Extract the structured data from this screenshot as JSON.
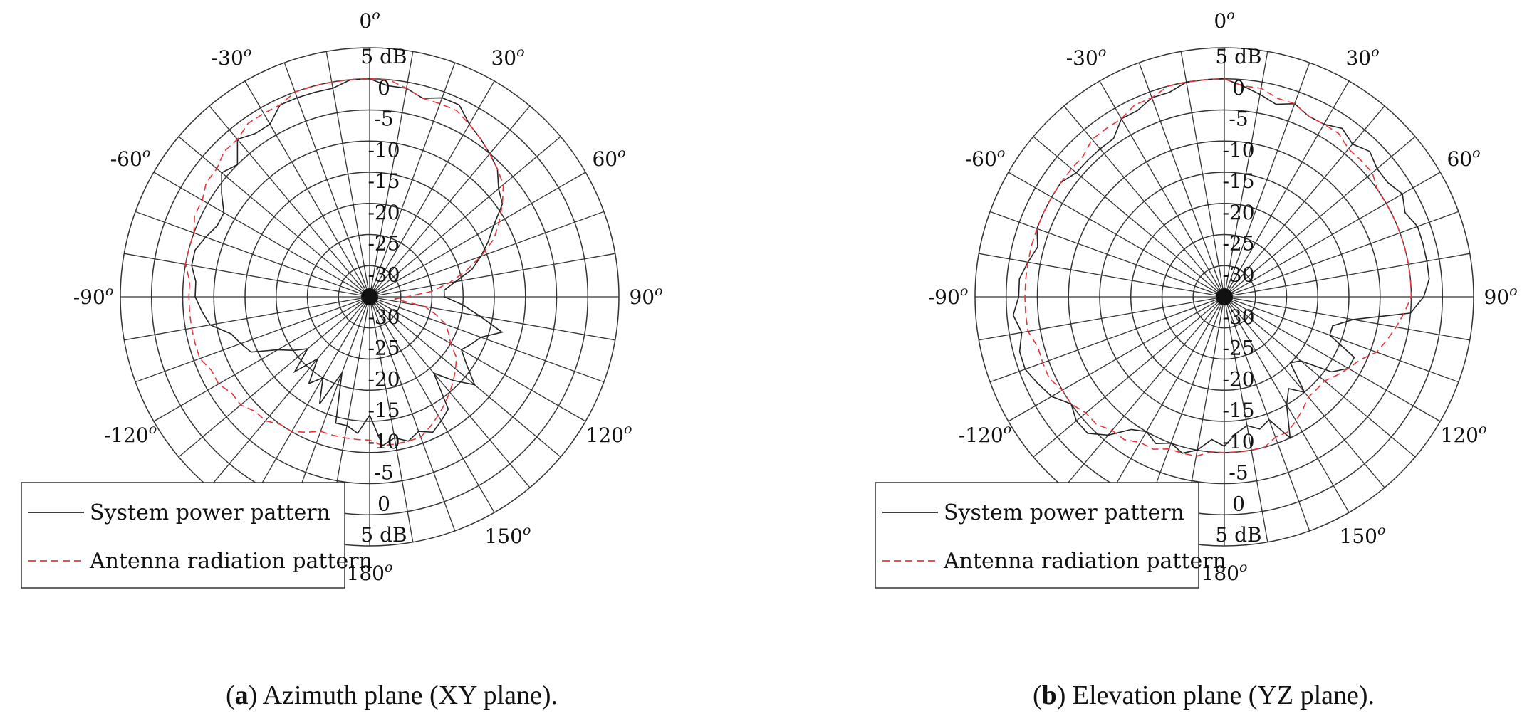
{
  "chart_data": [
    {
      "type": "polar-line",
      "angular_ticks": [
        "0",
        "30",
        "60",
        "90",
        "120",
        "150",
        "180",
        "-150",
        "-120",
        "-90",
        "-60",
        "-30"
      ],
      "angular_tick_values": [
        0,
        30,
        60,
        90,
        120,
        150,
        180,
        -150,
        -120,
        -90,
        -60,
        -30
      ],
      "angle_superscript": "o",
      "radial_ticks": [
        "-30",
        "-25",
        "-20",
        "-15",
        "-10",
        "-5",
        "0",
        "5 dB"
      ],
      "radial_tick_values": [
        -30,
        -25,
        -20,
        -15,
        -10,
        -5,
        0,
        5
      ],
      "rlim": [
        -35,
        5
      ],
      "grid": true,
      "legend_position": "bottom-left",
      "caption": {
        "label": "a",
        "text": ") Azimuth plane (XY plane).",
        "open": "("
      },
      "series": [
        {
          "name": "System power pattern",
          "style": "solid",
          "color": "#222222",
          "theta": [
            0,
            5,
            10,
            15,
            20,
            25,
            30,
            35,
            40,
            45,
            50,
            55,
            60,
            65,
            70,
            75,
            80,
            85,
            90,
            95,
            100,
            105,
            110,
            115,
            120,
            125,
            130,
            135,
            140,
            145,
            150,
            155,
            160,
            165,
            170,
            175,
            180,
            185,
            190,
            195,
            200,
            205,
            210,
            215,
            220,
            225,
            230,
            235,
            240,
            245,
            250,
            255,
            260,
            265,
            270,
            275,
            280,
            285,
            290,
            295,
            300,
            305,
            310,
            315,
            320,
            325,
            330,
            335,
            340,
            345,
            350,
            355
          ],
          "r": [
            0,
            -1,
            -1,
            -2,
            -1,
            -1,
            -3,
            -4,
            -5,
            -6,
            -8,
            -9,
            -12,
            -14,
            -16,
            -18,
            -21,
            -23,
            -23,
            -20,
            -17,
            -13,
            -16,
            -17,
            -18,
            -16,
            -13,
            -16,
            -19,
            -13,
            -12,
            -11,
            -12,
            -11,
            -12,
            -11,
            -16,
            -13,
            -14,
            -14,
            -22,
            -16,
            -20,
            -18,
            -22,
            -18,
            -22,
            -20,
            -18,
            -14,
            -13,
            -12,
            -9,
            -8,
            -7,
            -7,
            -6,
            -6,
            -7,
            -8,
            -8,
            -6,
            -4,
            -5,
            -2,
            -3,
            -3,
            -1,
            -1,
            -1,
            -1,
            0
          ]
        },
        {
          "name": "Antenna radiation pattern",
          "style": "dashed",
          "color": "#e8353b",
          "theta": [
            0,
            5,
            10,
            15,
            20,
            25,
            30,
            35,
            40,
            45,
            50,
            55,
            60,
            65,
            70,
            75,
            80,
            85,
            90,
            95,
            100,
            105,
            110,
            115,
            120,
            125,
            130,
            135,
            140,
            145,
            150,
            155,
            160,
            165,
            170,
            175,
            180,
            185,
            190,
            195,
            200,
            205,
            210,
            215,
            220,
            225,
            230,
            235,
            240,
            245,
            250,
            255,
            260,
            265,
            270,
            275,
            280,
            285,
            290,
            295,
            300,
            305,
            310,
            315,
            320,
            325,
            330,
            335,
            340,
            345,
            350,
            355
          ],
          "r": [
            0,
            0,
            -1,
            -2,
            -2,
            -2,
            -3,
            -4,
            -5,
            -6,
            -7,
            -9,
            -11,
            -13,
            -16,
            -19,
            -22,
            -25,
            -29,
            -31,
            -26,
            -24,
            -22,
            -21,
            -20,
            -18,
            -17,
            -16,
            -15,
            -14,
            -13,
            -12,
            -11,
            -11,
            -11,
            -11,
            -12,
            -12,
            -12,
            -12,
            -12,
            -11,
            -10,
            -10,
            -9,
            -9,
            -8,
            -8,
            -7,
            -7,
            -6,
            -6,
            -6,
            -6,
            -6,
            -6,
            -5,
            -5,
            -5,
            -4,
            -4,
            -3,
            -3,
            -2,
            -2,
            -1,
            -1,
            -1,
            0,
            0,
            0,
            0
          ]
        }
      ]
    },
    {
      "type": "polar-line",
      "angular_ticks": [
        "0",
        "30",
        "60",
        "90",
        "120",
        "150",
        "180",
        "-150",
        "-120",
        "-90",
        "-60",
        "-30"
      ],
      "angular_tick_values": [
        0,
        30,
        60,
        90,
        120,
        150,
        180,
        -150,
        -120,
        -90,
        -60,
        -30
      ],
      "angle_superscript": "o",
      "radial_ticks": [
        "-30",
        "-25",
        "-20",
        "-15",
        "-10",
        "-5",
        "0",
        "5 dB"
      ],
      "radial_tick_values": [
        -30,
        -25,
        -20,
        -15,
        -10,
        -5,
        0,
        5
      ],
      "rlim": [
        -35,
        5
      ],
      "grid": true,
      "legend_position": "bottom-left",
      "caption": {
        "label": "b",
        "text": ") Elevation plane (YZ plane).",
        "open": "("
      },
      "series": [
        {
          "name": "System power pattern",
          "style": "solid",
          "color": "#222222",
          "theta": [
            0,
            5,
            10,
            15,
            20,
            25,
            30,
            35,
            40,
            45,
            50,
            55,
            60,
            65,
            70,
            75,
            80,
            85,
            90,
            95,
            100,
            105,
            110,
            115,
            120,
            125,
            130,
            135,
            140,
            145,
            150,
            155,
            160,
            165,
            170,
            175,
            180,
            185,
            190,
            195,
            200,
            205,
            210,
            215,
            220,
            225,
            230,
            235,
            240,
            245,
            250,
            255,
            260,
            265,
            270,
            275,
            280,
            285,
            290,
            295,
            300,
            305,
            310,
            315,
            320,
            325,
            330,
            335,
            340,
            345,
            350,
            355
          ],
          "r": [
            0,
            -1,
            -2,
            -3,
            -2,
            -3,
            -3,
            -2,
            -3,
            -2,
            -3,
            -3,
            -2,
            -3,
            -2,
            -2,
            -2,
            -2,
            -3,
            -5,
            -14,
            -17,
            -17,
            -12,
            -12,
            -14,
            -19,
            -20,
            -15,
            -17,
            -15,
            -10,
            -14,
            -13,
            -14,
            -13,
            -11,
            -12,
            -10,
            -9,
            -10,
            -9,
            -10,
            -9,
            -6,
            -4,
            -4,
            -5,
            -3,
            -2,
            -1,
            -1,
            -2,
            -1,
            -2,
            -2,
            -3,
            -4,
            -3,
            -3,
            -3,
            -3,
            -4,
            -4,
            -4,
            -4,
            -2,
            -2,
            -1,
            -1,
            0,
            0
          ]
        },
        {
          "name": "Antenna radiation pattern",
          "style": "dashed",
          "color": "#e8353b",
          "theta": [
            0,
            5,
            10,
            15,
            20,
            25,
            30,
            35,
            40,
            45,
            50,
            55,
            60,
            65,
            70,
            75,
            80,
            85,
            90,
            95,
            100,
            105,
            110,
            115,
            120,
            125,
            130,
            135,
            140,
            145,
            150,
            155,
            160,
            165,
            170,
            175,
            180,
            185,
            190,
            195,
            200,
            205,
            210,
            215,
            220,
            225,
            230,
            235,
            240,
            245,
            250,
            255,
            260,
            265,
            270,
            275,
            280,
            285,
            290,
            295,
            300,
            305,
            310,
            315,
            320,
            325,
            330,
            335,
            340,
            345,
            350,
            355
          ],
          "r": [
            0,
            -1,
            -1,
            -2,
            -2,
            -3,
            -3,
            -3,
            -4,
            -4,
            -4,
            -5,
            -5,
            -5,
            -5,
            -5,
            -5,
            -5,
            -5,
            -6,
            -7,
            -8,
            -9,
            -11,
            -12,
            -13,
            -14,
            -14,
            -14,
            -13,
            -12,
            -11,
            -11,
            -10,
            -10,
            -10,
            -10,
            -10,
            -9,
            -9,
            -9,
            -8,
            -8,
            -7,
            -7,
            -6,
            -6,
            -5,
            -5,
            -4,
            -4,
            -4,
            -3,
            -3,
            -3,
            -3,
            -3,
            -3,
            -3,
            -3,
            -3,
            -3,
            -3,
            -3,
            -2,
            -2,
            -2,
            -1,
            -1,
            0,
            0,
            0
          ]
        }
      ]
    }
  ]
}
